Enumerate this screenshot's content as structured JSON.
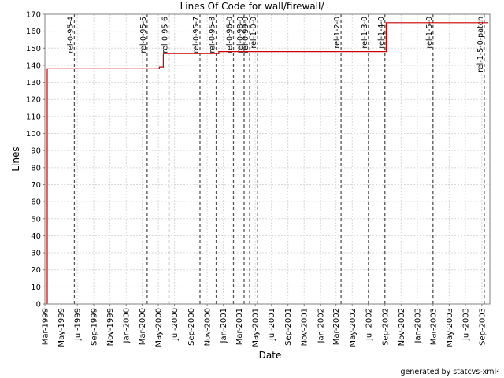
{
  "chart_data": {
    "type": "line",
    "title": "Lines Of Code for wall/firewall/",
    "xlabel": "Date",
    "ylabel": "Lines",
    "ylim": [
      0,
      170
    ],
    "yticks": [
      0,
      10,
      20,
      30,
      40,
      50,
      60,
      70,
      80,
      90,
      100,
      110,
      120,
      130,
      140,
      150,
      160,
      170
    ],
    "xlim": [
      "1999-03-01",
      "2003-10-01"
    ],
    "xticks": [
      {
        "date": "1999-03-01",
        "label": "Mar-1999"
      },
      {
        "date": "1999-05-01",
        "label": "May-1999"
      },
      {
        "date": "1999-07-01",
        "label": "Jul-1999"
      },
      {
        "date": "1999-09-01",
        "label": "Sep-1999"
      },
      {
        "date": "1999-11-01",
        "label": "Nov-1999"
      },
      {
        "date": "2000-01-01",
        "label": "Jan-2000"
      },
      {
        "date": "2000-03-01",
        "label": "Mar-2000"
      },
      {
        "date": "2000-05-01",
        "label": "May-2000"
      },
      {
        "date": "2000-07-01",
        "label": "Jul-2000"
      },
      {
        "date": "2000-09-01",
        "label": "Sep-2000"
      },
      {
        "date": "2000-11-01",
        "label": "Nov-2000"
      },
      {
        "date": "2001-01-01",
        "label": "Jan-2001"
      },
      {
        "date": "2001-03-01",
        "label": "Mar-2001"
      },
      {
        "date": "2001-05-01",
        "label": "May-2001"
      },
      {
        "date": "2001-07-01",
        "label": "Jul-2001"
      },
      {
        "date": "2001-09-01",
        "label": "Sep-2001"
      },
      {
        "date": "2001-11-01",
        "label": "Nov-2001"
      },
      {
        "date": "2002-01-01",
        "label": "Jan-2002"
      },
      {
        "date": "2002-03-01",
        "label": "Mar-2002"
      },
      {
        "date": "2002-05-01",
        "label": "May-2002"
      },
      {
        "date": "2002-07-01",
        "label": "Jul-2002"
      },
      {
        "date": "2002-09-01",
        "label": "Sep-2002"
      },
      {
        "date": "2002-11-01",
        "label": "Nov-2002"
      },
      {
        "date": "2003-01-01",
        "label": "Jan-2003"
      },
      {
        "date": "2003-03-01",
        "label": "Mar-2003"
      },
      {
        "date": "2003-05-01",
        "label": "May-2003"
      },
      {
        "date": "2003-07-01",
        "label": "Jul-2003"
      },
      {
        "date": "2003-09-01",
        "label": "Sep-2003"
      }
    ],
    "grid": true,
    "series": [
      {
        "name": "",
        "color": "#cc0000",
        "points": [
          {
            "x": "1999-03-10",
            "y": 0
          },
          {
            "x": "1999-03-10",
            "y": 138
          },
          {
            "x": "2000-05-05",
            "y": 138
          },
          {
            "x": "2000-05-05",
            "y": 139
          },
          {
            "x": "2000-05-20",
            "y": 139
          },
          {
            "x": "2000-05-20",
            "y": 147
          },
          {
            "x": "2000-12-15",
            "y": 147
          },
          {
            "x": "2000-12-15",
            "y": 148
          },
          {
            "x": "2002-09-06",
            "y": 148
          },
          {
            "x": "2002-09-06",
            "y": 165
          },
          {
            "x": "2003-09-25",
            "y": 165
          }
        ]
      }
    ],
    "annotations": [
      {
        "x": "1999-06-20",
        "label": "rel-0-95-4"
      },
      {
        "x": "2000-03-20",
        "label": "rel-0-95-5"
      },
      {
        "x": "2000-06-10",
        "label": "rel-0-95-6"
      },
      {
        "x": "2000-10-05",
        "label": "rel-0-95-7"
      },
      {
        "x": "2000-12-05",
        "label": "rel-0-95-8"
      },
      {
        "x": "2001-02-08",
        "label": "rel-0-96-0"
      },
      {
        "x": "2001-03-20",
        "label": "rel-0-98-0"
      },
      {
        "x": "2001-04-10",
        "label": "rel-0-99-0"
      },
      {
        "x": "2001-05-10",
        "label": "rel-1-0-0"
      },
      {
        "x": "2002-03-20",
        "label": "rel-1-2-0"
      },
      {
        "x": "2002-07-01",
        "label": "rel-1-3-0"
      },
      {
        "x": "2002-09-01",
        "label": "rel-1-4-0"
      },
      {
        "x": "2003-03-01",
        "label": "rel-1-5-0"
      },
      {
        "x": "2003-09-10",
        "label": "rel-1-5-0-patch"
      }
    ]
  },
  "footer": {
    "credit": "generated by statcvs-xml²"
  }
}
